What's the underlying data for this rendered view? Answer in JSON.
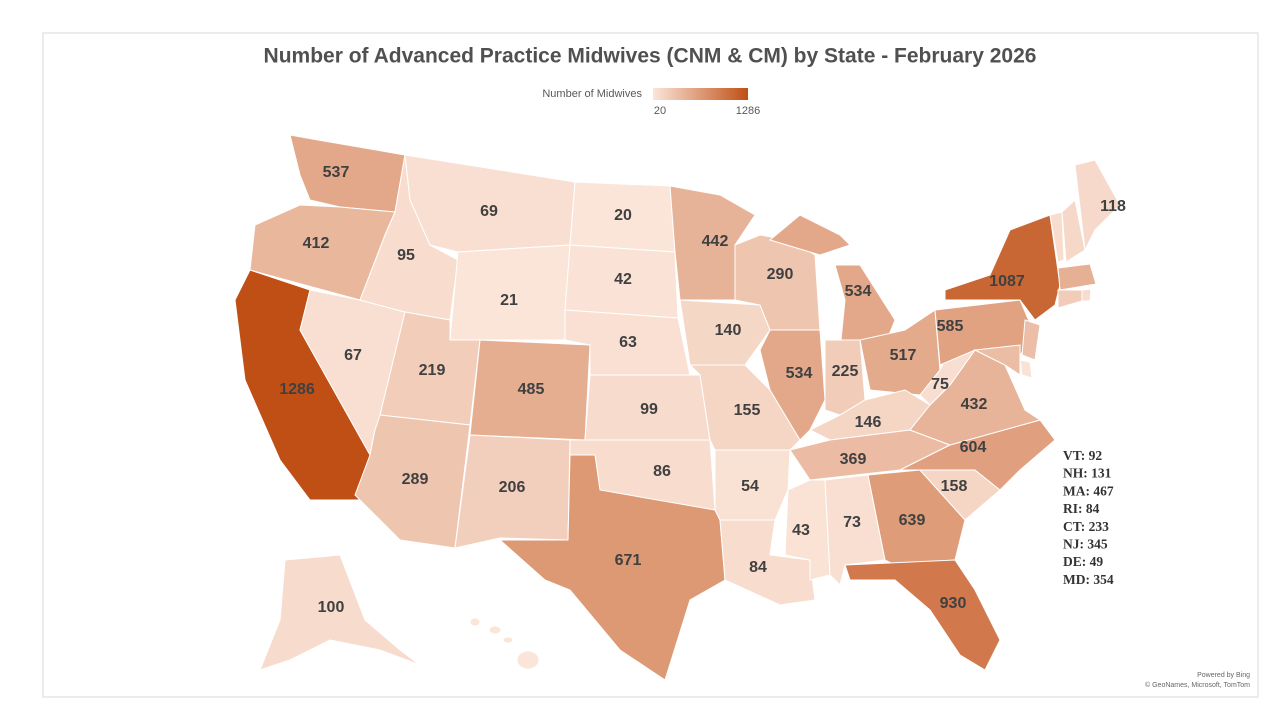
{
  "chart_data": {
    "type": "choropleth",
    "title": "Number of Advanced Practice Midwives (CNM & CM) by State - February 2026",
    "legend_title": "Number of Midwives",
    "colorlim": [
      20,
      1286
    ],
    "colors": [
      "#fbe5d9",
      "#c04f15"
    ],
    "values": [
      537,
      412,
      1286,
      67,
      95,
      69,
      21,
      219,
      485,
      289,
      206,
      20,
      42,
      63,
      99,
      86,
      671,
      442,
      140,
      155,
      54,
      84,
      290,
      534,
      534,
      225,
      517,
      146,
      369,
      43,
      73,
      639,
      930,
      158,
      604,
      432,
      75,
      585,
      1087,
      118,
      100
    ],
    "callouts": {
      "labels": [
        "VT",
        "NH",
        "MA",
        "RI",
        "CT",
        "NJ",
        "DE",
        "MD"
      ],
      "values": [
        92,
        131,
        467,
        84,
        233,
        345,
        49,
        354
      ]
    },
    "credits": [
      "Powered by Bing",
      "© GeoNames, Microsoft, TomTom"
    ]
  }
}
